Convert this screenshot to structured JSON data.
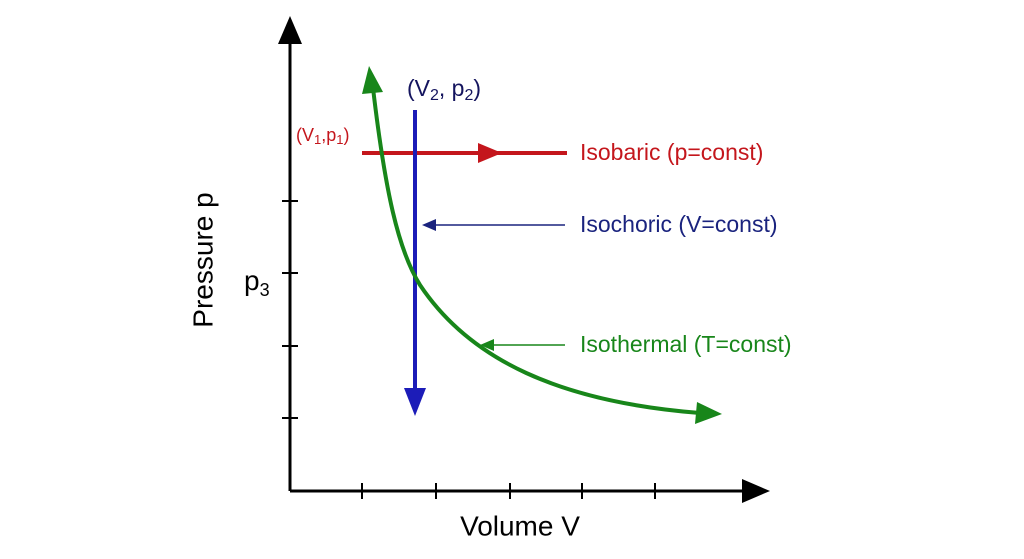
{
  "diagram": {
    "axes": {
      "y_label": "Pressure p",
      "x_label": "Volume V"
    },
    "p3_label": {
      "base": "p",
      "sub": "3"
    },
    "point1_label": {
      "parts": [
        "(V",
        "1",
        ",p",
        "1",
        ")"
      ]
    },
    "point2_label": {
      "parts": [
        "(V",
        "2",
        ", p",
        "2",
        ")"
      ]
    },
    "processes": [
      {
        "label": "Isobaric (p=const)"
      },
      {
        "label": "Isochoric (V=const)"
      },
      {
        "label": "Isothermal (T=const)"
      }
    ]
  }
}
